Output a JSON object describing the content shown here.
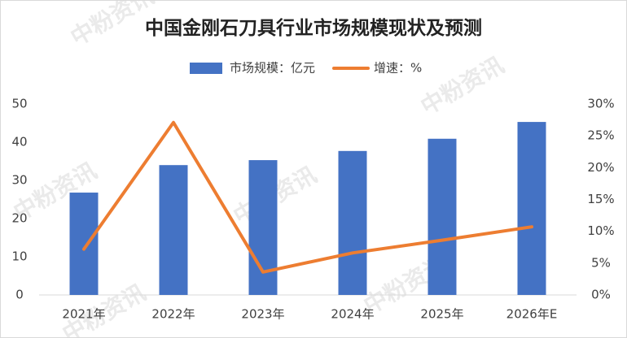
{
  "chart_data": {
    "type": "bar_line",
    "title": "中国金刚石刀具行业市场规模现状及预测",
    "watermark": "中粉资讯",
    "categories": [
      "2021年",
      "2022年",
      "2023年",
      "2024年",
      "2025年",
      "2026年E"
    ],
    "series": [
      {
        "name": "市场规模：亿元",
        "type": "bar",
        "color": "#4472c4",
        "values": [
          26.8,
          34.0,
          35.3,
          37.7,
          40.9,
          45.3
        ]
      },
      {
        "name": "增速：%",
        "type": "line",
        "axis": "y2",
        "color": "#ed7d31",
        "values": [
          7.2,
          27.1,
          3.6,
          6.6,
          8.6,
          10.7
        ]
      }
    ],
    "ylim": [
      0,
      50
    ],
    "yticks": [
      0,
      10,
      20,
      30,
      40,
      50
    ],
    "y2lim": [
      0,
      30
    ],
    "y2ticks": [
      {
        "value": 0,
        "label": "0%"
      },
      {
        "value": 5,
        "label": "5%"
      },
      {
        "value": 10,
        "label": "10%"
      },
      {
        "value": 15,
        "label": "15%"
      },
      {
        "value": 20,
        "label": "20%"
      },
      {
        "value": 25,
        "label": "25%"
      },
      {
        "value": 30,
        "label": "30%"
      }
    ],
    "legend": "top"
  }
}
